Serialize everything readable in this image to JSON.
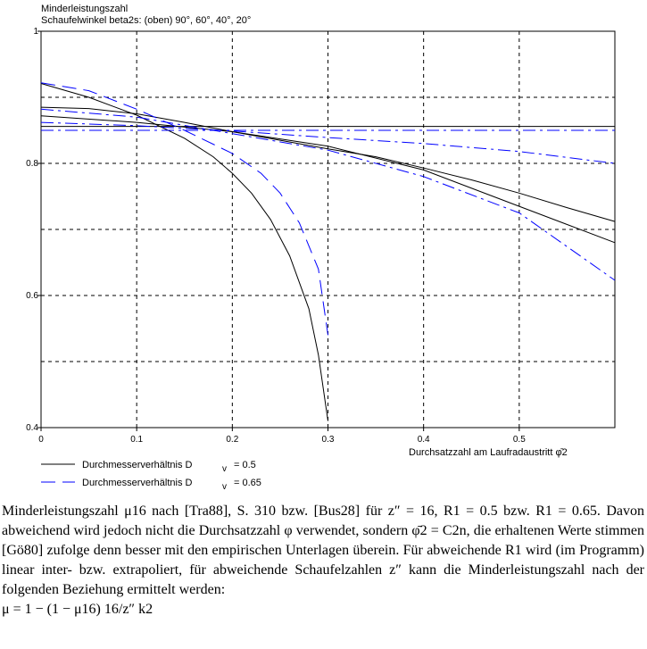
{
  "chart_data": {
    "type": "line",
    "title": "Minderleistungszahl",
    "subtitle": "Schaufelwinkel beta2s: (oben) 90°, 60°, 40°, 20°",
    "xlabel": "Durchsatzzahl am Laufradaustritt  φ̄2",
    "ylabel": "",
    "xlim": [
      0,
      0.6
    ],
    "ylim": [
      0.4,
      1.0
    ],
    "x_ticks": [
      "0",
      "0.1",
      "0.2",
      "0.3",
      "0.4",
      "0.5"
    ],
    "x_tick_values": [
      0,
      0.1,
      0.2,
      0.3,
      0.4,
      0.5
    ],
    "y_ticks": [
      "0.4",
      "0.6",
      "0.8",
      "1"
    ],
    "y_tick_values": [
      0.4,
      0.6,
      0.8,
      1.0
    ],
    "grid_x": [
      0.1,
      0.2,
      0.3,
      0.4,
      0.5
    ],
    "grid_y": [
      0.5,
      0.6,
      0.7,
      0.8,
      0.9
    ],
    "grid": true,
    "legend_placement": "bottom-left",
    "legend": [
      {
        "label": "Durchmesserverhältnis   D",
        "sub": "v",
        "value": "= 0.5",
        "color": "#000000",
        "dash": "solid"
      },
      {
        "label": "Durchmesserverhältnis   D",
        "sub": "v",
        "value": "= 0.65",
        "color": "#0000ff",
        "dash": "dashed"
      }
    ],
    "series": [
      {
        "color": "#000000",
        "style": "solid",
        "points": [
          [
            0,
            0.856
          ],
          [
            0.6,
            0.856
          ]
        ]
      },
      {
        "color": "#000000",
        "style": "solid",
        "points": [
          [
            0,
            0.872
          ],
          [
            0.1,
            0.862
          ],
          [
            0.2,
            0.848
          ],
          [
            0.3,
            0.826
          ],
          [
            0.4,
            0.79
          ],
          [
            0.5,
            0.735
          ],
          [
            0.6,
            0.68
          ]
        ]
      },
      {
        "color": "#000000",
        "style": "solid",
        "points": [
          [
            0,
            0.885
          ],
          [
            0.05,
            0.883
          ],
          [
            0.1,
            0.875
          ],
          [
            0.15,
            0.862
          ],
          [
            0.2,
            0.848
          ],
          [
            0.25,
            0.835
          ],
          [
            0.3,
            0.822
          ],
          [
            0.35,
            0.81
          ],
          [
            0.4,
            0.793
          ],
          [
            0.45,
            0.775
          ],
          [
            0.5,
            0.755
          ],
          [
            0.55,
            0.733
          ],
          [
            0.6,
            0.712
          ]
        ]
      },
      {
        "color": "#000000",
        "style": "solid",
        "points": [
          [
            0,
            0.921
          ],
          [
            0.05,
            0.9
          ],
          [
            0.1,
            0.873
          ],
          [
            0.15,
            0.838
          ],
          [
            0.18,
            0.81
          ],
          [
            0.2,
            0.785
          ],
          [
            0.22,
            0.755
          ],
          [
            0.24,
            0.715
          ],
          [
            0.26,
            0.66
          ],
          [
            0.28,
            0.58
          ],
          [
            0.29,
            0.51
          ],
          [
            0.3,
            0.41
          ]
        ]
      },
      {
        "color": "#0000ff",
        "style": "dashdot",
        "points": [
          [
            0,
            0.85
          ],
          [
            0.6,
            0.85
          ]
        ]
      },
      {
        "color": "#0000ff",
        "style": "dashdot",
        "points": [
          [
            0,
            0.862
          ],
          [
            0.1,
            0.857
          ],
          [
            0.2,
            0.849
          ],
          [
            0.3,
            0.839
          ],
          [
            0.4,
            0.83
          ],
          [
            0.5,
            0.818
          ],
          [
            0.6,
            0.8
          ]
        ]
      },
      {
        "color": "#0000ff",
        "style": "dashdot",
        "points": [
          [
            0,
            0.882
          ],
          [
            0.1,
            0.87
          ],
          [
            0.2,
            0.845
          ],
          [
            0.3,
            0.82
          ],
          [
            0.4,
            0.78
          ],
          [
            0.5,
            0.725
          ],
          [
            0.6,
            0.623
          ]
        ]
      },
      {
        "color": "#0000ff",
        "style": "dashed",
        "points": [
          [
            0,
            0.922
          ],
          [
            0.05,
            0.91
          ],
          [
            0.1,
            0.882
          ],
          [
            0.15,
            0.85
          ],
          [
            0.2,
            0.815
          ],
          [
            0.23,
            0.785
          ],
          [
            0.25,
            0.755
          ],
          [
            0.27,
            0.71
          ],
          [
            0.29,
            0.64
          ],
          [
            0.3,
            0.54
          ]
        ]
      }
    ]
  },
  "caption": {
    "text": "Minderleistungszahl μ16 nach [Tra88], S. 310 bzw. [Bus28] für z″ = 16, R1 = 0.5 bzw. R1 = 0.65. Davon abweichend wird jedoch nicht die Durchsatzzahl φ verwendet, sondern φ̄2 = C2n, die erhaltenen Werte stimmen [Gö80] zufolge denn besser mit den empirischen Unterlagen überein. Für abweichende R1 wird (im Programm) linear inter- bzw. extrapoliert, für abweichende Schaufelzahlen z″ kann die Minderleistungszahl nach der folgenden Beziehung ermittelt werden:",
    "formula": "μ = 1 − (1 − μ16) 16/z″ k2"
  }
}
